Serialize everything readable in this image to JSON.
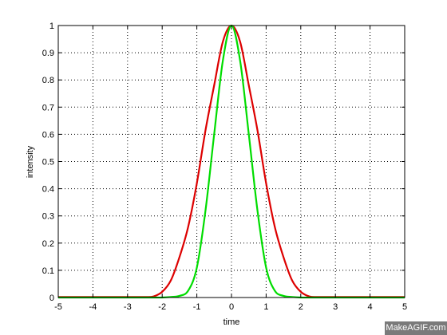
{
  "chart_data": {
    "type": "line",
    "title": "",
    "xlabel": "time",
    "ylabel": "intensity",
    "xlim": [
      -5,
      5
    ],
    "ylim": [
      0,
      1
    ],
    "grid": true,
    "x_ticks": [
      "-5",
      "-4",
      "-3",
      "-2",
      "-1",
      "0",
      "1",
      "2",
      "3",
      "4",
      "5"
    ],
    "y_ticks": [
      "0",
      "0.1",
      "0.2",
      "0.3",
      "0.4",
      "0.5",
      "0.6",
      "0.7",
      "0.8",
      "0.9",
      "1"
    ],
    "x": [
      -5,
      -4.5,
      -4,
      -3.5,
      -3,
      -2.5,
      -2.25,
      -2,
      -1.75,
      -1.5,
      -1.25,
      -1,
      -0.75,
      -0.5,
      -0.25,
      0,
      0.25,
      0.5,
      0.75,
      1,
      1.25,
      1.5,
      1.75,
      2,
      2.25,
      2.5,
      3,
      3.5,
      4,
      4.5,
      5
    ],
    "series": [
      {
        "color": "#dd0000",
        "values": [
          0.002,
          0.002,
          0.002,
          0.002,
          0.002,
          0.002,
          0.004,
          0.021,
          0.063,
          0.149,
          0.26,
          0.42,
          0.615,
          0.78,
          0.94,
          1.0,
          0.94,
          0.78,
          0.615,
          0.42,
          0.26,
          0.149,
          0.063,
          0.021,
          0.004,
          0.002,
          0.002,
          0.002,
          0.002,
          0.002,
          0.002
        ]
      },
      {
        "color": "#00dd00",
        "values": [
          0.0,
          0.0,
          0.0,
          0.0,
          0.0,
          0.0,
          0.0,
          0.0,
          0.002,
          0.006,
          0.025,
          0.11,
          0.32,
          0.6,
          0.87,
          1.0,
          0.87,
          0.6,
          0.32,
          0.11,
          0.025,
          0.006,
          0.002,
          0.0,
          0.0,
          0.0,
          0.0,
          0.0,
          0.0,
          0.0,
          0.0
        ]
      }
    ]
  },
  "watermark": "MakeAGIF.com"
}
